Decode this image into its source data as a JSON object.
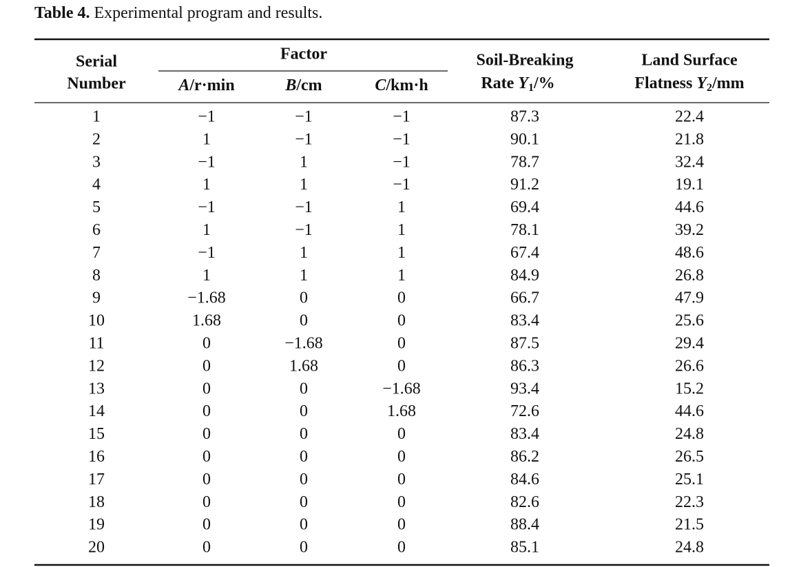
{
  "caption": {
    "label": "Table 4.",
    "text": "Experimental program and results."
  },
  "table": {
    "header": {
      "serial": [
        "Serial",
        "Number"
      ],
      "factor": "Factor",
      "factors": [
        {
          "var": "A",
          "unit": "/r·min"
        },
        {
          "var": "B",
          "unit": "/cm"
        },
        {
          "var": "C",
          "unit": "/km·h"
        }
      ],
      "y1": {
        "line1": "Soil-Breaking",
        "prefix": "Rate ",
        "var": "Y",
        "sub": "1",
        "unit": "/%"
      },
      "y2": {
        "line1": "Land Surface",
        "prefix": "Flatness ",
        "var": "Y",
        "sub": "2",
        "unit": "/mm"
      }
    },
    "rows": [
      [
        "1",
        "−1",
        "−1",
        "−1",
        "87.3",
        "22.4"
      ],
      [
        "2",
        "1",
        "−1",
        "−1",
        "90.1",
        "21.8"
      ],
      [
        "3",
        "−1",
        "1",
        "−1",
        "78.7",
        "32.4"
      ],
      [
        "4",
        "1",
        "1",
        "−1",
        "91.2",
        "19.1"
      ],
      [
        "5",
        "−1",
        "−1",
        "1",
        "69.4",
        "44.6"
      ],
      [
        "6",
        "1",
        "−1",
        "1",
        "78.1",
        "39.2"
      ],
      [
        "7",
        "−1",
        "1",
        "1",
        "67.4",
        "48.6"
      ],
      [
        "8",
        "1",
        "1",
        "1",
        "84.9",
        "26.8"
      ],
      [
        "9",
        "−1.68",
        "0",
        "0",
        "66.7",
        "47.9"
      ],
      [
        "10",
        "1.68",
        "0",
        "0",
        "83.4",
        "25.6"
      ],
      [
        "11",
        "0",
        "−1.68",
        "0",
        "87.5",
        "29.4"
      ],
      [
        "12",
        "0",
        "1.68",
        "0",
        "86.3",
        "26.6"
      ],
      [
        "13",
        "0",
        "0",
        "−1.68",
        "93.4",
        "15.2"
      ],
      [
        "14",
        "0",
        "0",
        "1.68",
        "72.6",
        "44.6"
      ],
      [
        "15",
        "0",
        "0",
        "0",
        "83.4",
        "24.8"
      ],
      [
        "16",
        "0",
        "0",
        "0",
        "86.2",
        "26.5"
      ],
      [
        "17",
        "0",
        "0",
        "0",
        "84.6",
        "25.1"
      ],
      [
        "18",
        "0",
        "0",
        "0",
        "82.6",
        "22.3"
      ],
      [
        "19",
        "0",
        "0",
        "0",
        "88.4",
        "21.5"
      ],
      [
        "20",
        "0",
        "0",
        "0",
        "85.1",
        "24.8"
      ]
    ]
  }
}
